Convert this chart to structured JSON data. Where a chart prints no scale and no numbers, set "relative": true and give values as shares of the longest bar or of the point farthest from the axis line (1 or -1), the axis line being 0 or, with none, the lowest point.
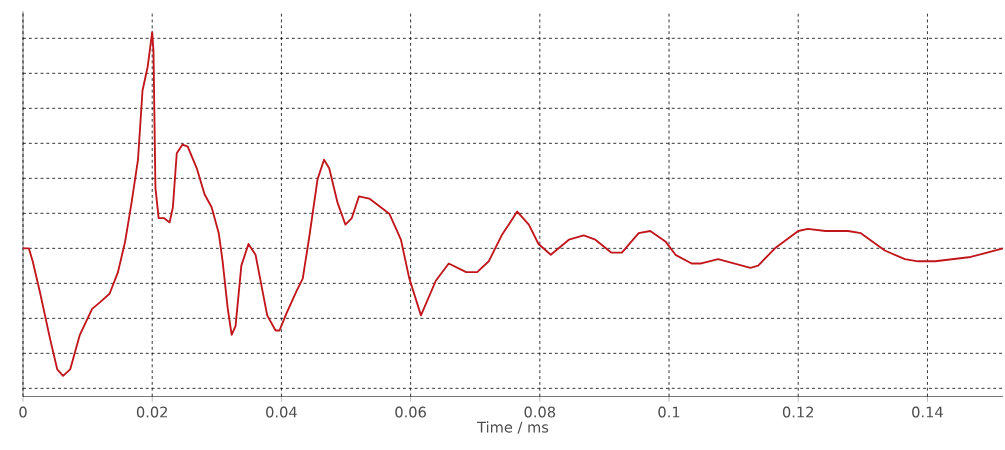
{
  "chart_data": {
    "type": "line",
    "xlabel": "Time / ms",
    "relative": true,
    "grid": true,
    "marker": "none",
    "line_style": "solid",
    "xlim": [
      0,
      0.1517
    ],
    "xticks": [
      0,
      0.02,
      0.04,
      0.06,
      0.08,
      0.1,
      0.12,
      0.14
    ],
    "series": [
      {
        "color": "#c0161c",
        "x": [
          0,
          0.0009,
          0.0015,
          0.0026,
          0.0042,
          0.0053,
          0.0062,
          0.0073,
          0.0088,
          0.0107,
          0.0119,
          0.0134,
          0.0147,
          0.0158,
          0.0168,
          0.0178,
          0.0185,
          0.0193,
          0.02,
          0.0202,
          0.0205,
          0.021,
          0.0218,
          0.0227,
          0.0232,
          0.0238,
          0.0247,
          0.0255,
          0.0269,
          0.0281,
          0.0292,
          0.0303,
          0.0309,
          0.0317,
          0.0323,
          0.0329,
          0.0338,
          0.0349,
          0.036,
          0.0369,
          0.0378,
          0.0391,
          0.0397,
          0.0408,
          0.0423,
          0.0433,
          0.0443,
          0.0456,
          0.0466,
          0.0474,
          0.0487,
          0.0499,
          0.0509,
          0.052,
          0.0536,
          0.0567,
          0.0585,
          0.0598,
          0.0616,
          0.0639,
          0.0659,
          0.0686,
          0.0703,
          0.0721,
          0.0741,
          0.0765,
          0.0783,
          0.0798,
          0.0817,
          0.0845,
          0.0868,
          0.0886,
          0.0911,
          0.0927,
          0.0953,
          0.0971,
          0.0995,
          0.101,
          0.1035,
          0.105,
          0.1076,
          0.1126,
          0.1138,
          0.1164,
          0.12,
          0.1215,
          0.1242,
          0.1277,
          0.1297,
          0.1334,
          0.1365,
          0.1385,
          0.1412,
          0.1467,
          0.1517
        ],
        "values": [
          0,
          0,
          -0.06,
          -0.2,
          -0.42,
          -0.56,
          -0.59,
          -0.56,
          -0.4,
          -0.28,
          -0.25,
          -0.21,
          -0.11,
          0.03,
          0.21,
          0.41,
          0.73,
          0.84,
          1,
          0.91,
          0.28,
          0.14,
          0.14,
          0.12,
          0.19,
          0.44,
          0.48,
          0.47,
          0.37,
          0.25,
          0.19,
          0.07,
          -0.06,
          -0.28,
          -0.4,
          -0.36,
          -0.08,
          0.02,
          -0.03,
          -0.17,
          -0.31,
          -0.38,
          -0.38,
          -0.3,
          -0.2,
          -0.14,
          0.05,
          0.32,
          0.41,
          0.37,
          0.21,
          0.11,
          0.14,
          0.24,
          0.23,
          0.16,
          0.04,
          -0.14,
          -0.31,
          -0.15,
          -0.07,
          -0.11,
          -0.11,
          -0.06,
          0.06,
          0.17,
          0.11,
          0.02,
          -0.03,
          0.04,
          0.06,
          0.04,
          -0.02,
          -0.02,
          0.07,
          0.08,
          0.03,
          -0.03,
          -0.07,
          -0.07,
          -0.05,
          -0.09,
          -0.08,
          0,
          0.08,
          0.09,
          0.08,
          0.08,
          0.07,
          -0.01,
          -0.05,
          -0.06,
          -0.06,
          -0.04,
          0
        ]
      }
    ]
  }
}
